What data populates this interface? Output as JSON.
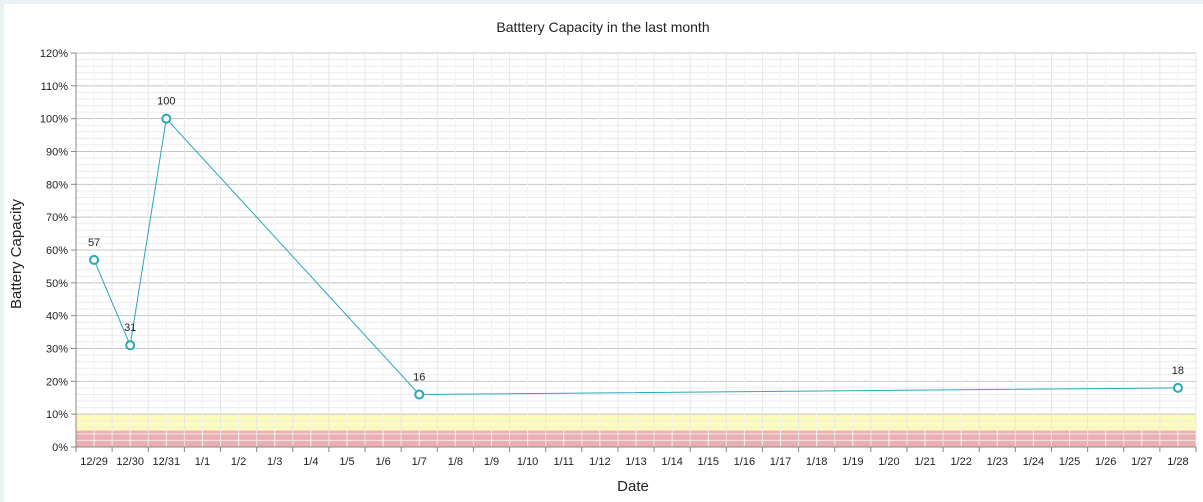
{
  "chart_data": {
    "type": "line",
    "title": "Batttery Capacity in the last month",
    "xlabel": "Date",
    "ylabel": "Battery Capacity",
    "ylim": [
      0,
      120
    ],
    "ytick_step": 10,
    "ytick_suffix": "%",
    "categories": [
      "12/29",
      "12/30",
      "12/31",
      "1/1",
      "1/2",
      "1/3",
      "1/4",
      "1/5",
      "1/6",
      "1/7",
      "1/8",
      "1/9",
      "1/10",
      "1/11",
      "1/12",
      "1/13",
      "1/14",
      "1/15",
      "1/16",
      "1/17",
      "1/18",
      "1/19",
      "1/20",
      "1/21",
      "1/22",
      "1/23",
      "1/24",
      "1/25",
      "1/26",
      "1/27",
      "1/28"
    ],
    "series": [
      {
        "name": "Battery Capacity",
        "color": "#2aa8b8",
        "points": [
          {
            "x": "12/29",
            "y": 57
          },
          {
            "x": "12/30",
            "y": 31
          },
          {
            "x": "12/31",
            "y": 100
          },
          {
            "x": "1/7",
            "y": 16
          },
          {
            "x": "1/28",
            "y": 18
          }
        ]
      }
    ],
    "bands": [
      {
        "from": 0,
        "to": 5,
        "color": "#eaa6a8"
      },
      {
        "from": 5,
        "to": 10,
        "color": "#fdfbb0"
      }
    ],
    "grid": true
  }
}
